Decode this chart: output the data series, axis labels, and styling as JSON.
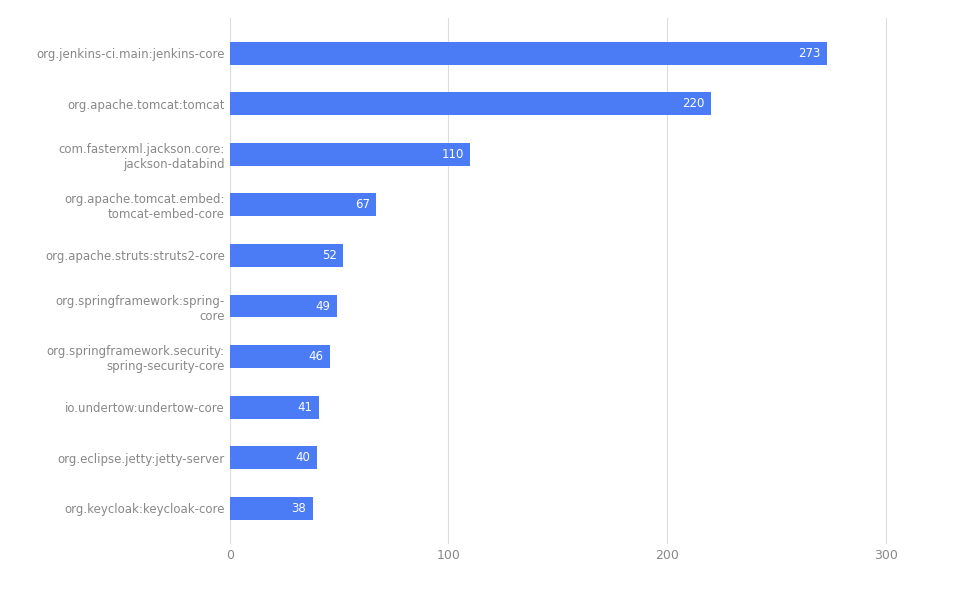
{
  "categories": [
    "org.keycloak:keycloak-core",
    "org.eclipse.jetty:jetty-server",
    "io.undertow:undertow-core",
    "org.springframework.security:\nspring-security-core",
    "org.springframework:spring-\ncore",
    "org.apache.struts:struts2-core",
    "org.apache.tomcat.embed:\ntomcat-embed-core",
    "com.fasterxml.jackson.core:\njackson-databind",
    "org.apache.tomcat:tomcat",
    "org.jenkins-ci.main:jenkins-core"
  ],
  "values": [
    38,
    40,
    41,
    46,
    49,
    52,
    67,
    110,
    220,
    273
  ],
  "bar_color": "#4B7BF5",
  "background_color": "#ffffff",
  "grid_color": "#dddddd",
  "text_color": "#ffffff",
  "label_color": "#606060",
  "tick_color": "#888888",
  "xlim": [
    0,
    315
  ],
  "xticks": [
    0,
    100,
    200,
    300
  ],
  "bar_height": 0.45,
  "value_fontsize": 8.5,
  "label_fontsize": 8.5
}
